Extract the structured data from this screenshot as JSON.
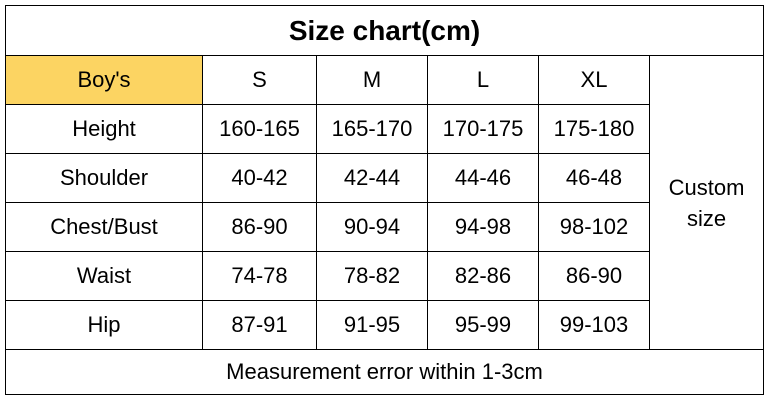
{
  "header": {
    "title": "Size chart(cm)"
  },
  "table": {
    "columns": [
      "Boy's",
      "S",
      "M",
      "L",
      "XL"
    ],
    "rows": [
      [
        "Height",
        "160-165",
        "165-170",
        "170-175",
        "175-180"
      ],
      [
        "Shoulder",
        "40-42",
        "42-44",
        "44-46",
        "46-48"
      ],
      [
        "Chest/Bust",
        "86-90",
        "90-94",
        "94-98",
        "98-102"
      ],
      [
        "Waist",
        "74-78",
        "78-82",
        "82-86",
        "86-90"
      ],
      [
        "Hip",
        "87-91",
        "91-95",
        "95-99",
        "99-103"
      ]
    ],
    "side_note": "Custom size"
  },
  "footer": {
    "note": "Measurement error within 1-3cm"
  }
}
